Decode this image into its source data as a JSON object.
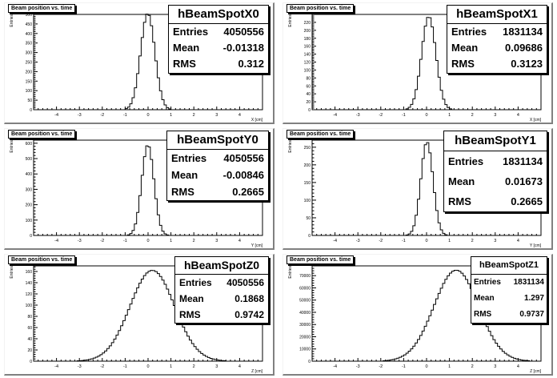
{
  "chart_data": [
    {
      "type": "histogram",
      "title": "Beam position vs. time",
      "xlabel": "X [cm]",
      "ylabel": "Entries",
      "xlim": [
        -5,
        5
      ],
      "ylim": [
        0,
        500
      ],
      "xticks": [
        -4,
        -3,
        -2,
        -1,
        0,
        1,
        2,
        3,
        4
      ],
      "yticks": [
        0,
        50,
        100,
        150,
        200,
        250,
        300,
        350,
        400,
        450,
        500
      ],
      "stats": {
        "name": "hBeamSpotX0",
        "entries": "4050556",
        "mean": "-0.01318",
        "rms": "0.312"
      },
      "mean": -0.01318,
      "rms": 0.312,
      "peak": 505,
      "bin_width": 0.1
    },
    {
      "type": "histogram",
      "title": "Beam position vs. time",
      "xlabel": "X [cm]",
      "ylabel": "Entries",
      "xlim": [
        -5,
        5
      ],
      "ylim": [
        0,
        240
      ],
      "xticks": [
        -4,
        -3,
        -2,
        -1,
        0,
        1,
        2,
        3,
        4
      ],
      "yticks": [
        0,
        20,
        40,
        60,
        80,
        100,
        120,
        140,
        160,
        180,
        200,
        220
      ],
      "stats": {
        "name": "hBeamSpotX1",
        "entries": "1831134",
        "mean": "0.09686",
        "rms": "0.3123"
      },
      "mean": 0.09686,
      "rms": 0.3123,
      "peak": 235,
      "bin_width": 0.1
    },
    {
      "type": "histogram",
      "title": "Beam position vs. time",
      "xlabel": "Y [cm]",
      "ylabel": "Entries",
      "xlim": [
        -5,
        5
      ],
      "ylim": [
        0,
        620
      ],
      "xticks": [
        -4,
        -3,
        -2,
        -1,
        0,
        1,
        2,
        3,
        4
      ],
      "yticks": [
        0,
        100,
        200,
        300,
        400,
        500,
        600
      ],
      "stats": {
        "name": "hBeamSpotY0",
        "entries": "4050556",
        "mean": "-0.00846",
        "rms": "0.2665"
      },
      "mean": -0.00846,
      "rms": 0.2665,
      "peak": 590,
      "bin_width": 0.1
    },
    {
      "type": "histogram",
      "title": "Beam position vs. time",
      "xlabel": "Y [cm]",
      "ylabel": "Entries",
      "xlim": [
        -5,
        5
      ],
      "ylim": [
        0,
        270
      ],
      "xticks": [
        -4,
        -3,
        -2,
        -1,
        0,
        1,
        2,
        3,
        4
      ],
      "yticks": [
        0,
        50,
        100,
        150,
        200,
        250
      ],
      "stats": {
        "name": "hBeamSpotY1",
        "entries": "1831134",
        "mean": "0.01673",
        "rms": "0.2665"
      },
      "mean": 0.01673,
      "rms": 0.2665,
      "peak": 265,
      "bin_width": 0.1
    },
    {
      "type": "histogram",
      "title": "Beam position vs. time",
      "xlabel": "Z [cm]",
      "ylabel": "Entries",
      "xlim": [
        -5,
        5
      ],
      "ylim": [
        0,
        170
      ],
      "xticks": [
        -4,
        -3,
        -2,
        -1,
        0,
        1,
        2,
        3,
        4
      ],
      "yticks": [
        0,
        20,
        40,
        60,
        80,
        100,
        120,
        140,
        160
      ],
      "stats": {
        "name": "hBeamSpotZ0",
        "entries": "4050556",
        "mean": "0.1868",
        "rms": "0.9742"
      },
      "mean": 0.1868,
      "rms": 0.9742,
      "peak": 162,
      "bin_width": 0.1
    },
    {
      "type": "histogram",
      "title": "Beam position vs. time",
      "xlabel": "Z [cm]",
      "ylabel": "Entries",
      "xlim": [
        -5,
        5
      ],
      "ylim": [
        0,
        78000
      ],
      "xticks": [
        -4,
        -3,
        -2,
        -1,
        0,
        1,
        2,
        3,
        4
      ],
      "yticks": [
        0,
        10000,
        20000,
        30000,
        40000,
        50000,
        60000,
        70000
      ],
      "stats": {
        "name": "hBeamSpotZ1",
        "entries": "1831134",
        "mean": "1.297",
        "rms": "0.9737"
      },
      "mean": 1.297,
      "rms": 0.9737,
      "peak": 74500,
      "bin_width": 0.1
    }
  ],
  "stat_labels": {
    "entries": "Entries",
    "mean": "Mean",
    "rms": "RMS"
  }
}
